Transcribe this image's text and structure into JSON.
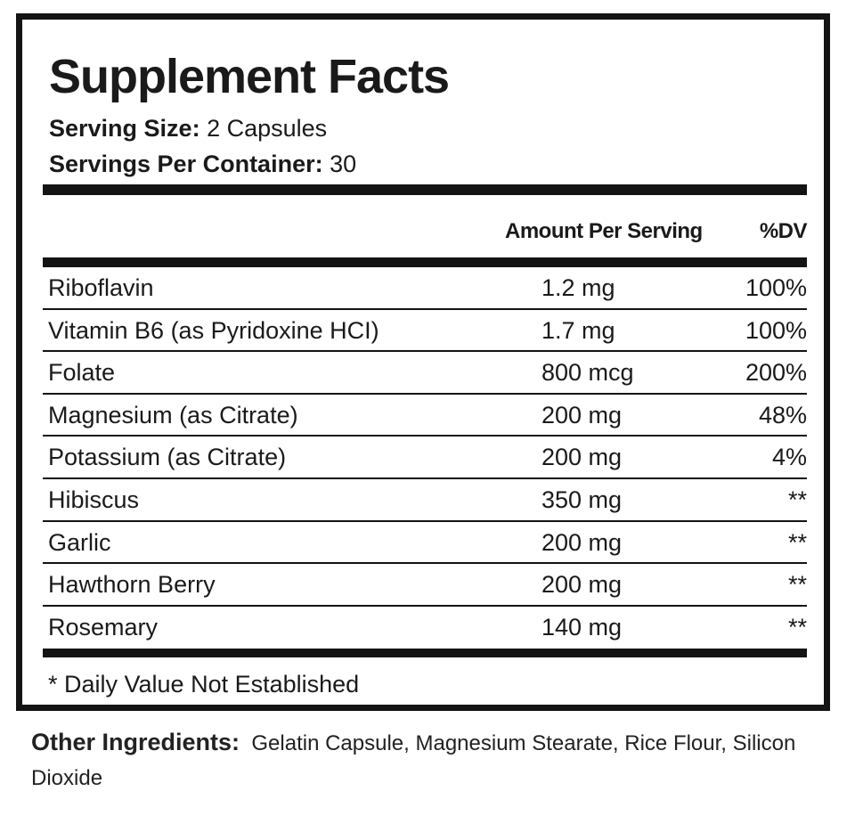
{
  "title": "Supplement Facts",
  "serving_size": {
    "label": "Serving Size:",
    "value": "2 Capsules"
  },
  "servings_per_container": {
    "label": "Servings Per Container:",
    "value": "30"
  },
  "header": {
    "amount": "Amount Per Serving",
    "dv": "%DV"
  },
  "rows": [
    {
      "name": "Riboflavin",
      "amount": "1.2 mg",
      "dv": "100%"
    },
    {
      "name": "Vitamin B6 (as Pyridoxine HCI)",
      "amount": "1.7 mg",
      "dv": "100%"
    },
    {
      "name": "Folate",
      "amount": "800 mcg",
      "dv": "200%"
    },
    {
      "name": "Magnesium (as Citrate)",
      "amount": "200 mg",
      "dv": "48%"
    },
    {
      "name": "Potassium (as Citrate)",
      "amount": "200 mg",
      "dv": "4%"
    },
    {
      "name": "Hibiscus",
      "amount": "350 mg",
      "dv": "**"
    },
    {
      "name": "Garlic",
      "amount": "200 mg",
      "dv": "**"
    },
    {
      "name": "Hawthorn Berry",
      "amount": "200 mg",
      "dv": "**"
    },
    {
      "name": "Rosemary",
      "amount": "140 mg",
      "dv": "**"
    }
  ],
  "footnote": "* Daily Value Not Established",
  "other_ingredients": {
    "label": "Other Ingredients:",
    "value": "Gelatin Capsule, Magnesium Stearate, Rice Flour, Silicon Dioxide"
  }
}
